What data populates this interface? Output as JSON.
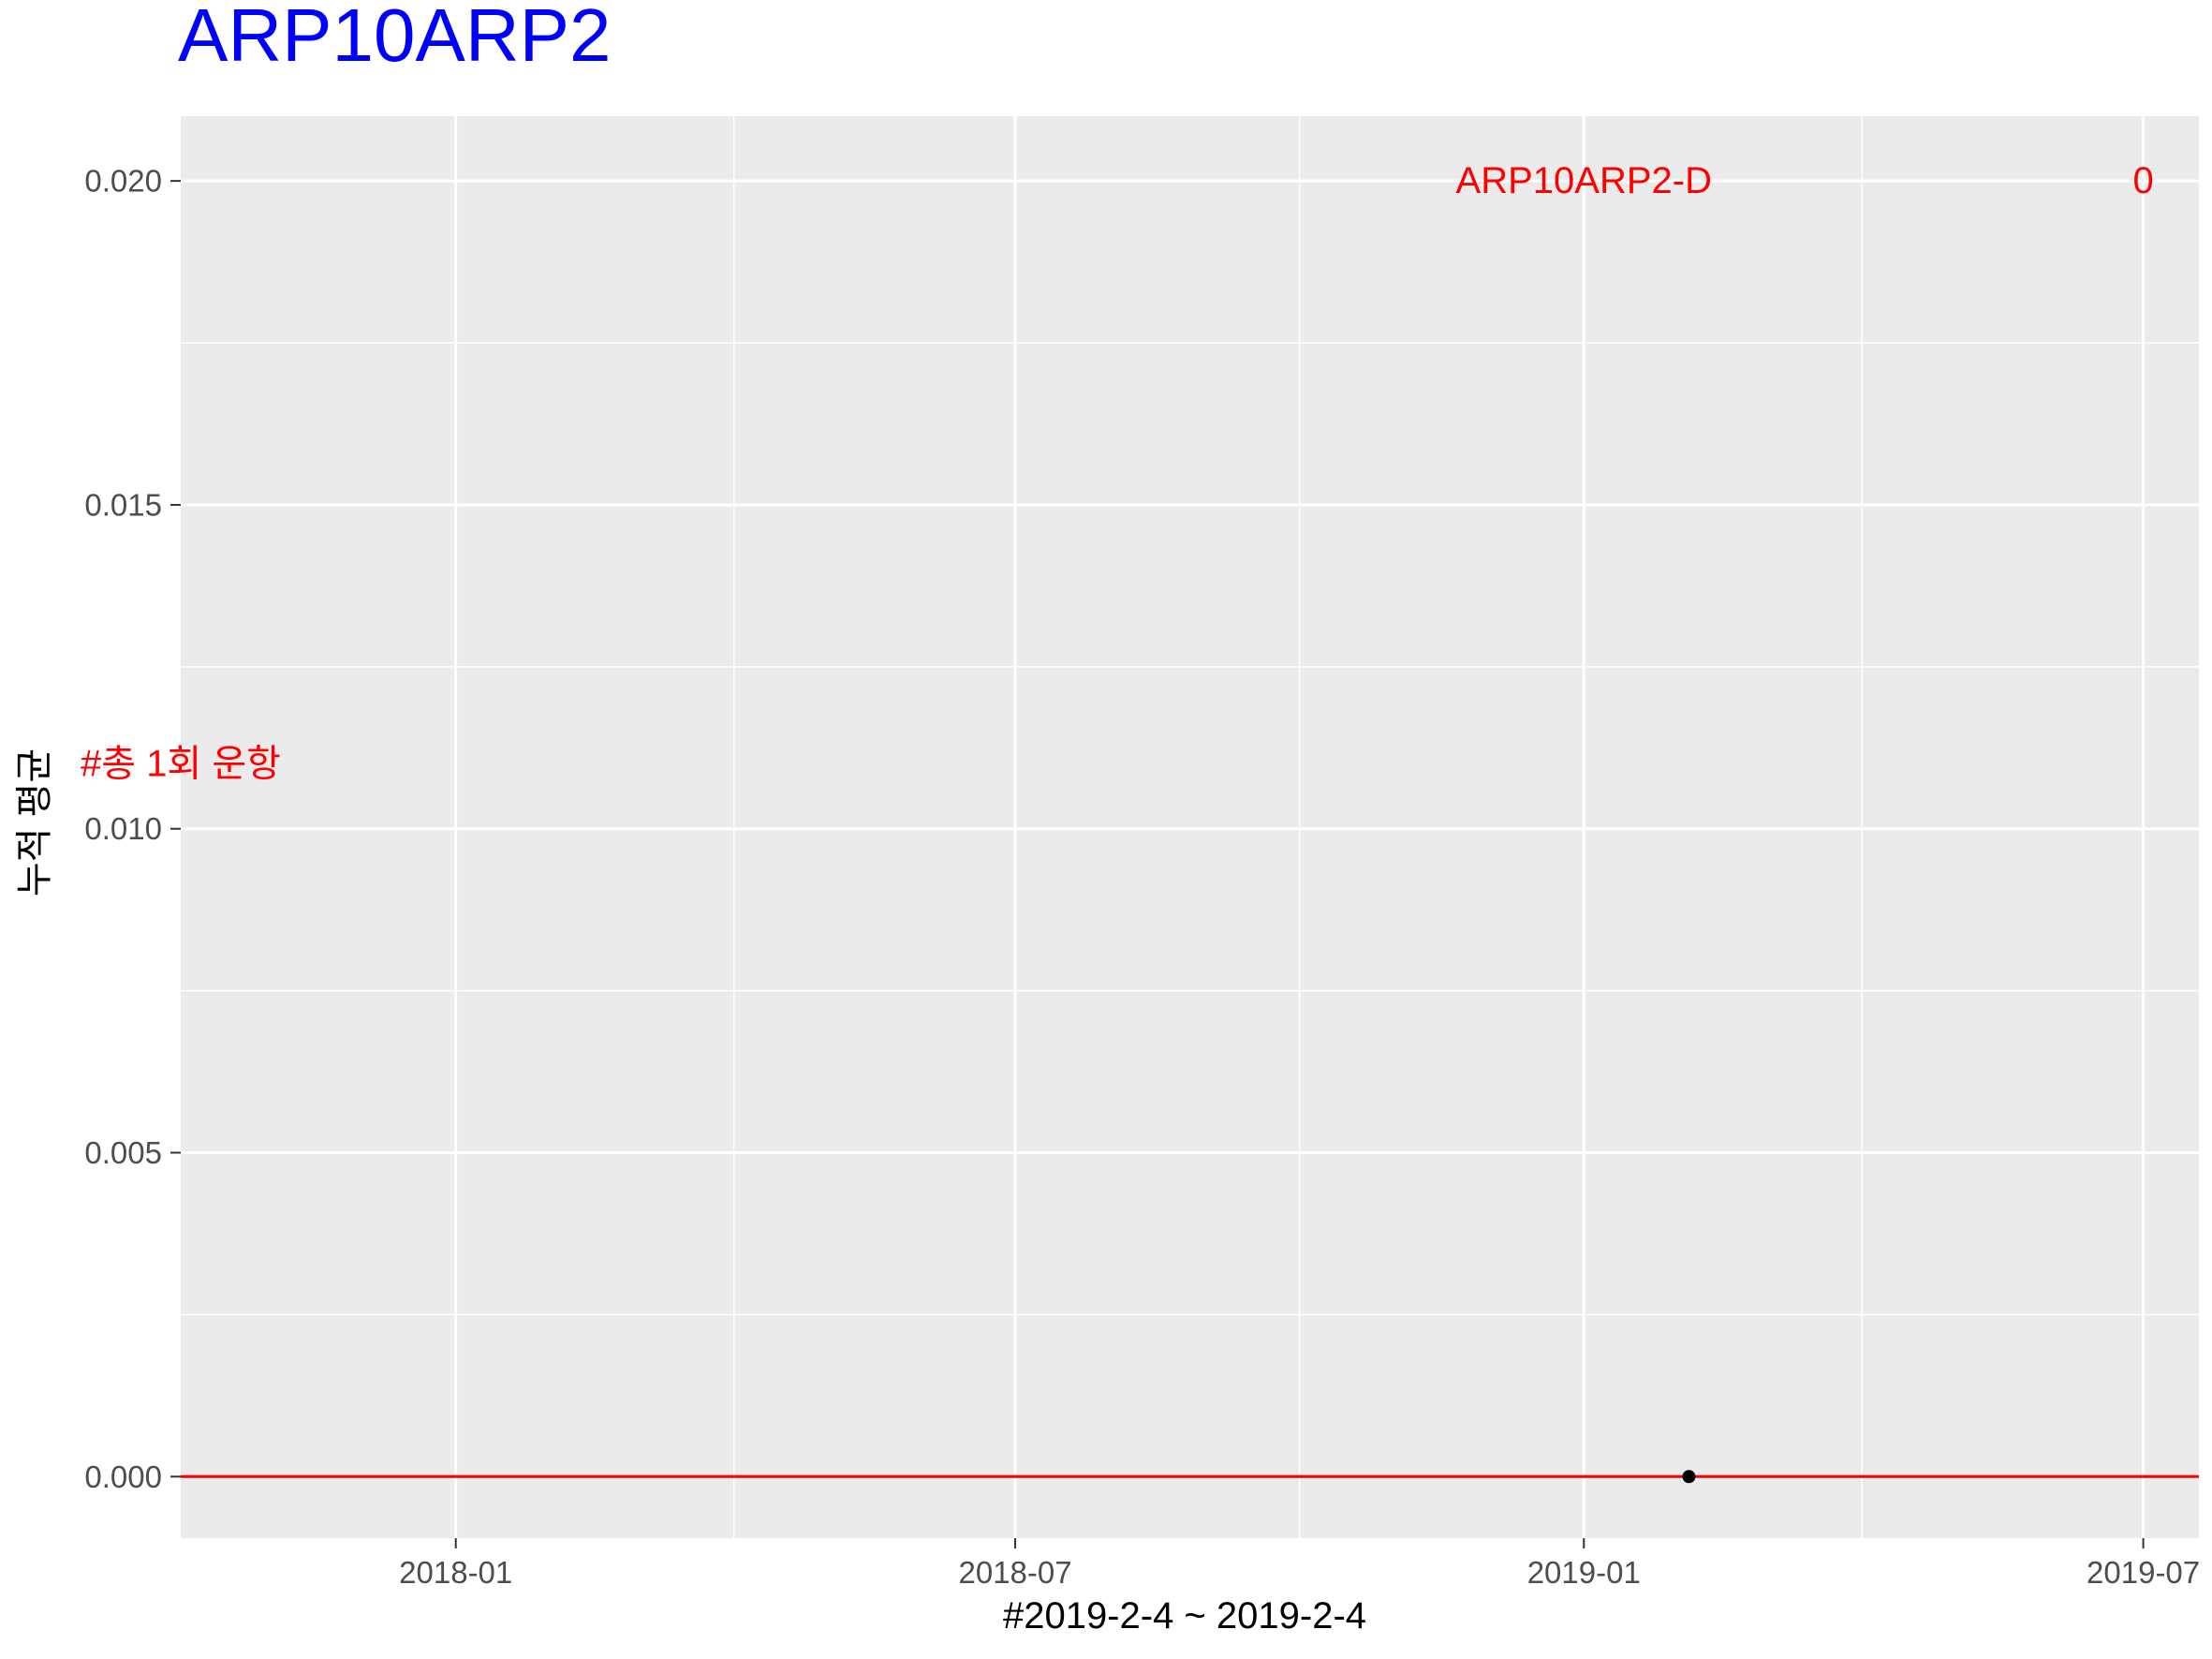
{
  "chart_data": {
    "type": "scatter",
    "title": "ARP10ARP2",
    "xlabel": "#2019-2-4 ~ 2019-2-4",
    "ylabel": "누적 평균",
    "x_type": "date",
    "xlim": [
      "2017-10-04",
      "2019-07-19"
    ],
    "ylim": [
      -0.00095,
      0.021
    ],
    "x_ticks": [
      {
        "date": "2018-01-01",
        "label": "2018-01"
      },
      {
        "date": "2018-07-01",
        "label": "2018-07"
      },
      {
        "date": "2019-01-01",
        "label": "2019-01"
      },
      {
        "date": "2019-07-01",
        "label": "2019-07"
      }
    ],
    "x_minor_ticks": [
      "2017-10-01",
      "2018-04-01",
      "2018-10-01",
      "2019-04-01"
    ],
    "y_ticks": [
      {
        "value": 0.0,
        "label": "0.000"
      },
      {
        "value": 0.005,
        "label": "0.005"
      },
      {
        "value": 0.01,
        "label": "0.010"
      },
      {
        "value": 0.015,
        "label": "0.015"
      },
      {
        "value": 0.02,
        "label": "0.020"
      }
    ],
    "y_minor_ticks": [
      0.0025,
      0.0075,
      0.0125,
      0.0175
    ],
    "points": [
      {
        "x": "2019-02-04",
        "y": 0.0
      }
    ],
    "hline": {
      "y": 0.0,
      "color": "#ff0000"
    },
    "annotations": [
      {
        "text": "ARP10ARP2-D",
        "x": "2019-01-01",
        "y": 0.02
      },
      {
        "text": "0",
        "x": "2019-07-01",
        "y": 0.02
      },
      {
        "text": "#총 1회 운항",
        "x": "2017-10-04",
        "y": 0.011
      }
    ],
    "grid": true,
    "legend": "none",
    "colors": {
      "panel": "#ebebeb",
      "grid": "#ffffff",
      "title": "#0000ff",
      "annotation": "#ff0000",
      "point": "#000000"
    }
  }
}
